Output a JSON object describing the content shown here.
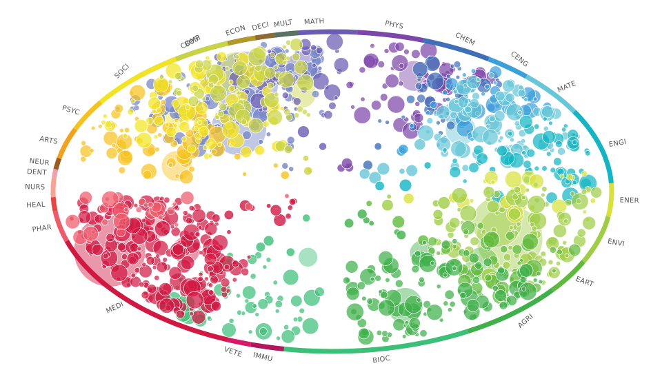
{
  "chart_data": {
    "type": "bubble-cluster-circle",
    "subjects": [
      {
        "label": "COMP",
        "color": "#7384c7",
        "start": -45.0,
        "end": -12.0
      },
      {
        "label": "MATH",
        "color": "#6a5bb3",
        "start": -12.0,
        "end": 5.0
      },
      {
        "label": "PHYS",
        "color": "#7d47a9",
        "start": 5.0,
        "end": 19.0
      },
      {
        "label": "CHEM",
        "color": "#3f6fb8",
        "start": 19.0,
        "end": 34.0
      },
      {
        "label": "CENG",
        "color": "#3aa0dc",
        "start": 34.0,
        "end": 44.0
      },
      {
        "label": "MATE",
        "color": "#67c6d8",
        "start": 44.0,
        "end": 60.0
      },
      {
        "label": "ENGI",
        "color": "#13b5c4",
        "start": 60.0,
        "end": 87.0
      },
      {
        "label": "ENER",
        "color": "#d8e23a",
        "start": 87.0,
        "end": 99.0
      },
      {
        "label": "ENVI",
        "color": "#9fcd45",
        "start": 99.0,
        "end": 116.0
      },
      {
        "label": "EART",
        "color": "#5fba3c",
        "start": 116.0,
        "end": 128.0
      },
      {
        "label": "AGRI",
        "color": "#3fb04a",
        "start": 128.0,
        "end": 151.0
      },
      {
        "label": "BIOC",
        "color": "#3cbf78",
        "start": 151.0,
        "end": 190.0
      },
      {
        "label": "IMMU",
        "color": "#b2175e",
        "start": 190.0,
        "end": 197.0
      },
      {
        "label": "VETE",
        "color": "#d61a6a",
        "start": 197.0,
        "end": 202.0
      },
      {
        "label": "MEDI",
        "color": "#d11843",
        "start": 202.0,
        "end": 252.0
      },
      {
        "label": "PHAR",
        "color": "#ef5a6b",
        "start": 252.0,
        "end": 263.0
      },
      {
        "label": "HEAL",
        "color": "#e8453f",
        "start": 263.0,
        "end": 268.0
      },
      {
        "label": "NURS",
        "color": "#f3a493",
        "start": 268.0,
        "end": 275.0
      },
      {
        "label": "DENT",
        "color": "#f2a0b0",
        "start": 275.0,
        "end": 278.0
      },
      {
        "label": "NEUR",
        "color": "#9a5b1d",
        "start": 278.0,
        "end": 282.0
      },
      {
        "label": "ARTS",
        "color": "#f4a21b",
        "start": 282.0,
        "end": 293.0
      },
      {
        "label": "PSYC",
        "color": "#f7c21e",
        "start": 293.0,
        "end": 304.0
      },
      {
        "label": "SOCI",
        "color": "#f3e422",
        "start": 304.0,
        "end": 326.0
      },
      {
        "label": "BUSI",
        "color": "#c9d445",
        "start": 326.0,
        "end": 338.0
      },
      {
        "label": "ECON",
        "color": "#b29a2a",
        "start": 338.0,
        "end": 344.0
      },
      {
        "label": "DECI",
        "color": "#8f6b32",
        "start": 344.0,
        "end": 348.0
      },
      {
        "label": "MULT",
        "color": "#5a7260",
        "start": 348.0,
        "end": 353.0
      }
    ],
    "clusters": [
      {
        "subject": "COMP",
        "angle": -32,
        "spread": 58,
        "count": 120,
        "big": [
          [
            -25,
            0.74,
            48
          ],
          [
            -40,
            0.52,
            40
          ]
        ]
      },
      {
        "subject": "MATH",
        "angle": -12,
        "spread": 30,
        "count": 45,
        "big": [
          [
            -8,
            0.78,
            24
          ]
        ]
      },
      {
        "subject": "PHYS",
        "angle": 22,
        "spread": 34,
        "count": 60,
        "big": [
          [
            22,
            0.78,
            22
          ]
        ]
      },
      {
        "subject": "CHEM",
        "angle": 35,
        "spread": 28,
        "count": 40,
        "big": []
      },
      {
        "subject": "CENG",
        "angle": 44,
        "spread": 24,
        "count": 40,
        "big": [
          [
            42,
            0.66,
            18
          ]
        ]
      },
      {
        "subject": "MATE",
        "angle": 55,
        "spread": 40,
        "count": 110,
        "big": [
          [
            50,
            0.6,
            22
          ]
        ]
      },
      {
        "subject": "ENGI",
        "angle": 75,
        "spread": 36,
        "count": 60,
        "big": []
      },
      {
        "subject": "ENER",
        "angle": 92,
        "spread": 24,
        "count": 30,
        "big": []
      },
      {
        "subject": "ENVI",
        "angle": 112,
        "spread": 48,
        "count": 110,
        "big": [
          [
            115,
            0.7,
            48
          ],
          [
            108,
            0.62,
            36
          ]
        ]
      },
      {
        "subject": "EART",
        "angle": 128,
        "spread": 32,
        "count": 60,
        "big": [
          [
            130,
            0.7,
            24
          ]
        ]
      },
      {
        "subject": "AGRI",
        "angle": 150,
        "spread": 50,
        "count": 120,
        "big": [
          [
            160,
            0.76,
            26
          ],
          [
            140,
            0.5,
            18
          ]
        ]
      },
      {
        "subject": "BIOC",
        "angle": 205,
        "spread": 42,
        "count": 70,
        "big": [
          [
            192,
            0.42,
            14
          ]
        ]
      },
      {
        "subject": "MEDI",
        "angle": 238,
        "spread": 56,
        "count": 230,
        "big": [
          [
            245,
            0.88,
            52
          ],
          [
            235,
            0.64,
            20
          ]
        ]
      },
      {
        "subject": "PHAR",
        "angle": 258,
        "spread": 20,
        "count": 30,
        "big": [
          [
            252,
            0.66,
            20
          ]
        ]
      },
      {
        "subject": "PSYC",
        "angle": 298,
        "spread": 40,
        "count": 70,
        "big": [
          [
            286,
            0.58,
            22
          ]
        ]
      },
      {
        "subject": "SOCI",
        "angle": 318,
        "spread": 46,
        "count": 90,
        "big": [
          [
            308,
            0.72,
            18
          ]
        ]
      },
      {
        "subject": "BUSI",
        "angle": 335,
        "spread": 34,
        "count": 70,
        "big": [
          [
            335,
            0.82,
            30
          ],
          [
            350,
            0.62,
            20
          ]
        ]
      }
    ]
  }
}
